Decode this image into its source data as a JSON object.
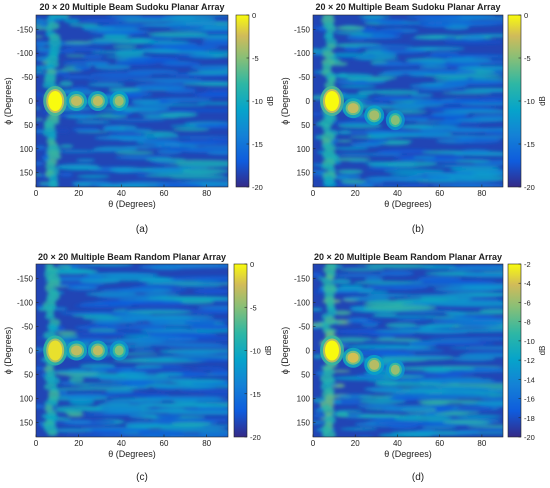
{
  "chart_data": [
    {
      "type": "heatmap",
      "panel_label": "(a)",
      "title": "20 × 20 Multiple Beam Sudoku Planar Array",
      "xlabel": "θ (Degrees)",
      "ylabel": "ϕ (Degrees)",
      "xlim": [
        0,
        90
      ],
      "ylim": [
        -180,
        180
      ],
      "xticks": [
        "0",
        "20",
        "40",
        "60",
        "80"
      ],
      "yticks": [
        "-150",
        "-100",
        "-50",
        "0",
        "50",
        "100",
        "150"
      ],
      "colorbar": {
        "label": "dB",
        "range": [
          -20,
          0
        ],
        "ticks": [
          "0",
          "-5",
          "-10",
          "-15",
          "-20"
        ]
      },
      "beams": [
        {
          "theta": 9,
          "phi": 0,
          "db": 0
        },
        {
          "theta": 19,
          "phi": 0,
          "db": -3
        },
        {
          "theta": 29,
          "phi": 0,
          "db": -3
        },
        {
          "theta": 39,
          "phi": 0,
          "db": -4
        }
      ]
    },
    {
      "type": "heatmap",
      "panel_label": "(b)",
      "title": "20 × 20 Multiple Beam Sudoku Planar Array",
      "xlabel": "θ (Degrees)",
      "ylabel": "ϕ (Degrees)",
      "xlim": [
        0,
        90
      ],
      "ylim": [
        -180,
        180
      ],
      "xticks": [
        "0",
        "20",
        "40",
        "60",
        "80"
      ],
      "yticks": [
        "-150",
        "-100",
        "-50",
        "0",
        "50",
        "100",
        "150"
      ],
      "colorbar": {
        "label": "dB",
        "range": [
          -20,
          0
        ],
        "ticks": [
          "0",
          "-5",
          "-10",
          "-15",
          "-20"
        ]
      },
      "beams": [
        {
          "theta": 9,
          "phi": 0,
          "db": 0
        },
        {
          "theta": 19,
          "phi": 15,
          "db": -3
        },
        {
          "theta": 29,
          "phi": 30,
          "db": -4
        },
        {
          "theta": 39,
          "phi": 40,
          "db": -5
        }
      ]
    },
    {
      "type": "heatmap",
      "panel_label": "(c)",
      "title": "20 × 20 Multiple Beam Random Planar Array",
      "xlabel": "θ (Degrees)",
      "ylabel": "ϕ (Degrees)",
      "xlim": [
        0,
        90
      ],
      "ylim": [
        -180,
        180
      ],
      "xticks": [
        "0",
        "20",
        "40",
        "60",
        "80"
      ],
      "yticks": [
        "-150",
        "-100",
        "-50",
        "0",
        "50",
        "100",
        "150"
      ],
      "colorbar": {
        "label": "dB",
        "range": [
          -20,
          0
        ],
        "ticks": [
          "0",
          "-5",
          "-10",
          "-15",
          "-20"
        ]
      },
      "beams": [
        {
          "theta": 9,
          "phi": 0,
          "db": -1
        },
        {
          "theta": 19,
          "phi": 0,
          "db": -3
        },
        {
          "theta": 29,
          "phi": 0,
          "db": -3
        },
        {
          "theta": 39,
          "phi": 0,
          "db": -5
        }
      ]
    },
    {
      "type": "heatmap",
      "panel_label": "(d)",
      "title": "20 × 20 Multiple Beam Random Planar Array",
      "xlabel": "θ (Degrees)",
      "ylabel": "ϕ (Degrees)",
      "xlim": [
        0,
        90
      ],
      "ylim": [
        -180,
        180
      ],
      "xticks": [
        "0",
        "20",
        "40",
        "60",
        "80"
      ],
      "yticks": [
        "-150",
        "-100",
        "-50",
        "0",
        "50",
        "100",
        "150"
      ],
      "colorbar": {
        "label": "dB",
        "range": [
          -20,
          -2
        ],
        "ticks": [
          "-2",
          "-4",
          "-6",
          "-8",
          "-10",
          "-12",
          "-14",
          "-16",
          "-18",
          "-20"
        ]
      },
      "beams": [
        {
          "theta": 9,
          "phi": 0,
          "db": -2
        },
        {
          "theta": 19,
          "phi": 15,
          "db": -4
        },
        {
          "theta": 29,
          "phi": 30,
          "db": -5
        },
        {
          "theta": 39,
          "phi": 40,
          "db": -6
        }
      ]
    }
  ]
}
